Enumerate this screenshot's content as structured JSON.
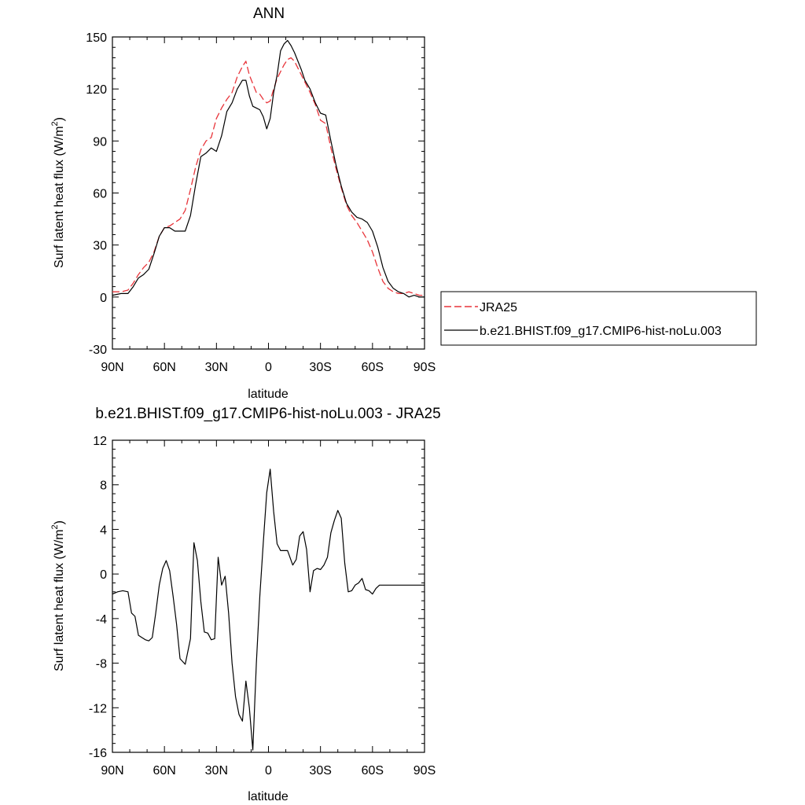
{
  "chart_data": [
    {
      "type": "line",
      "title": "ANN",
      "xlabel": "latitude",
      "ylabel": "Surf latent heat flux (W/m",
      "ylabel_sup": "2",
      "ylabel_close": ")",
      "xlim": [
        90,
        -90
      ],
      "ylim": [
        -30,
        150
      ],
      "xticks": [
        90,
        60,
        30,
        0,
        -30,
        -60,
        -90
      ],
      "xtick_labels": [
        "90N",
        "60N",
        "30N",
        "0",
        "30S",
        "60S",
        "90S"
      ],
      "yticks": [
        -30,
        0,
        30,
        60,
        90,
        120,
        150
      ],
      "ytick_labels": [
        "-30",
        "0",
        "30",
        "60",
        "90",
        "120",
        "150"
      ],
      "legend_position": "right",
      "series": [
        {
          "name": "JRA25",
          "color": "#e8343a",
          "dash": "dashed",
          "points": [
            [
              90,
              3
            ],
            [
              85,
              3
            ],
            [
              81,
              4
            ],
            [
              78,
              8
            ],
            [
              75,
              13
            ],
            [
              72,
              17
            ],
            [
              69,
              20
            ],
            [
              66,
              26
            ],
            [
              63,
              35
            ],
            [
              60,
              40
            ],
            [
              57,
              41
            ],
            [
              54,
              43
            ],
            [
              51,
              45
            ],
            [
              48,
              50
            ],
            [
              45,
              62
            ],
            [
              42,
              75
            ],
            [
              39,
              85
            ],
            [
              36,
              90
            ],
            [
              33,
              92
            ],
            [
              30,
              103
            ],
            [
              27,
              109
            ],
            [
              24,
              114
            ],
            [
              21,
              118
            ],
            [
              18,
              127
            ],
            [
              15,
              133
            ],
            [
              13,
              136
            ],
            [
              11,
              128
            ],
            [
              9,
              123
            ],
            [
              7,
              118
            ],
            [
              5,
              117
            ],
            [
              3,
              114
            ],
            [
              1,
              112
            ],
            [
              -1,
              113
            ],
            [
              -3,
              120
            ],
            [
              -5,
              126
            ],
            [
              -7,
              130
            ],
            [
              -9,
              134
            ],
            [
              -11,
              137
            ],
            [
              -13,
              138
            ],
            [
              -15,
              136
            ],
            [
              -17,
              132
            ],
            [
              -19,
              128
            ],
            [
              -21,
              124
            ],
            [
              -24,
              118
            ],
            [
              -27,
              111
            ],
            [
              -30,
              102
            ],
            [
              -33,
              100
            ],
            [
              -36,
              86
            ],
            [
              -39,
              74
            ],
            [
              -42,
              63
            ],
            [
              -45,
              53
            ],
            [
              -48,
              47
            ],
            [
              -51,
              43
            ],
            [
              -54,
              38
            ],
            [
              -57,
              33
            ],
            [
              -60,
              26
            ],
            [
              -63,
              17
            ],
            [
              -66,
              9
            ],
            [
              -69,
              5
            ],
            [
              -72,
              3
            ],
            [
              -75,
              2
            ],
            [
              -78,
              2
            ],
            [
              -81,
              3
            ],
            [
              -84,
              2
            ],
            [
              -87,
              1
            ],
            [
              -90,
              1
            ]
          ]
        },
        {
          "name": "b.e21.BHIST.f09_g17.CMIP6-hist-noLu.003",
          "color": "#000000",
          "dash": "solid",
          "points": [
            [
              90,
              1
            ],
            [
              85,
              2
            ],
            [
              81,
              2
            ],
            [
              78,
              6
            ],
            [
              75,
              11
            ],
            [
              72,
              13
            ],
            [
              69,
              16
            ],
            [
              66,
              25
            ],
            [
              63,
              35
            ],
            [
              60,
              40
            ],
            [
              57,
              40
            ],
            [
              54,
              38
            ],
            [
              51,
              38
            ],
            [
              48,
              38
            ],
            [
              45,
              47
            ],
            [
              42,
              65
            ],
            [
              39,
              81
            ],
            [
              36,
              83
            ],
            [
              33,
              86
            ],
            [
              30,
              84
            ],
            [
              27,
              93
            ],
            [
              24,
              107
            ],
            [
              21,
              112
            ],
            [
              18,
              120
            ],
            [
              15,
              125
            ],
            [
              13,
              125
            ],
            [
              11,
              116
            ],
            [
              9,
              110
            ],
            [
              7,
              109
            ],
            [
              5,
              108
            ],
            [
              3,
              104
            ],
            [
              1,
              97
            ],
            [
              -1,
              103
            ],
            [
              -3,
              118
            ],
            [
              -5,
              128
            ],
            [
              -7,
              142
            ],
            [
              -9,
              146
            ],
            [
              -11,
              148
            ],
            [
              -13,
              145
            ],
            [
              -15,
              141
            ],
            [
              -17,
              136
            ],
            [
              -19,
              131
            ],
            [
              -21,
              125
            ],
            [
              -24,
              120
            ],
            [
              -27,
              112
            ],
            [
              -30,
              106
            ],
            [
              -33,
              105
            ],
            [
              -36,
              90
            ],
            [
              -39,
              76
            ],
            [
              -42,
              64
            ],
            [
              -45,
              54
            ],
            [
              -48,
              49
            ],
            [
              -51,
              46
            ],
            [
              -54,
              45
            ],
            [
              -57,
              43
            ],
            [
              -60,
              38
            ],
            [
              -63,
              29
            ],
            [
              -66,
              17
            ],
            [
              -69,
              9
            ],
            [
              -72,
              5
            ],
            [
              -75,
              3
            ],
            [
              -78,
              2
            ],
            [
              -81,
              0
            ],
            [
              -84,
              1
            ],
            [
              -87,
              0
            ],
            [
              -90,
              0
            ]
          ]
        }
      ]
    },
    {
      "type": "line",
      "title": "b.e21.BHIST.f09_g17.CMIP6-hist-noLu.003 - JRA25",
      "xlabel": "latitude",
      "ylabel": "Surf latent heat flux (W/m",
      "ylabel_sup": "2",
      "ylabel_close": ")",
      "xlim": [
        90,
        -90
      ],
      "ylim": [
        -16,
        12
      ],
      "xticks": [
        90,
        60,
        30,
        0,
        -30,
        -60,
        -90
      ],
      "xtick_labels": [
        "90N",
        "60N",
        "30N",
        "0",
        "30S",
        "60S",
        "90S"
      ],
      "yticks": [
        -16,
        -12,
        -8,
        -4,
        0,
        4,
        8,
        12
      ],
      "ytick_labels": [
        "-16",
        "-12",
        "-8",
        "-4",
        "0",
        "4",
        "8",
        "12"
      ],
      "series": [
        {
          "color": "#000000",
          "dash": "solid",
          "points": [
            [
              90,
              -1.8
            ],
            [
              87,
              -1.6
            ],
            [
              84,
              -1.5
            ],
            [
              81,
              -1.6
            ],
            [
              79,
              -3.5
            ],
            [
              77,
              -3.8
            ],
            [
              75,
              -5.5
            ],
            [
              73,
              -5.7
            ],
            [
              71,
              -5.9
            ],
            [
              69,
              -6.0
            ],
            [
              67,
              -5.7
            ],
            [
              65,
              -3.5
            ],
            [
              63,
              -1.0
            ],
            [
              61,
              0.5
            ],
            [
              59,
              1.2
            ],
            [
              57,
              0.3
            ],
            [
              55,
              -2.0
            ],
            [
              53,
              -4.5
            ],
            [
              51,
              -7.6
            ],
            [
              48,
              -8.1
            ],
            [
              45,
              -5.8
            ],
            [
              43,
              2.8
            ],
            [
              41,
              1.2
            ],
            [
              39,
              -2.5
            ],
            [
              37,
              -5.2
            ],
            [
              35,
              -5.3
            ],
            [
              33,
              -5.9
            ],
            [
              31,
              -5.8
            ],
            [
              29,
              1.5
            ],
            [
              27,
              -1.0
            ],
            [
              25,
              -0.2
            ],
            [
              23,
              -3.5
            ],
            [
              21,
              -8.0
            ],
            [
              19,
              -11.0
            ],
            [
              17,
              -12.6
            ],
            [
              15,
              -13.2
            ],
            [
              13,
              -9.6
            ],
            [
              11,
              -12.0
            ],
            [
              9,
              -15.8
            ],
            [
              7,
              -8.0
            ],
            [
              5,
              -2.0
            ],
            [
              3,
              2.8
            ],
            [
              1,
              7.3
            ],
            [
              -1,
              9.4
            ],
            [
              -3,
              5.6
            ],
            [
              -5,
              2.7
            ],
            [
              -7,
              2.1
            ],
            [
              -9,
              2.1
            ],
            [
              -11,
              2.1
            ],
            [
              -14,
              0.8
            ],
            [
              -16,
              1.3
            ],
            [
              -18,
              3.4
            ],
            [
              -20,
              3.8
            ],
            [
              -22,
              2.2
            ],
            [
              -24,
              -1.6
            ],
            [
              -26,
              0.3
            ],
            [
              -28,
              0.5
            ],
            [
              -30,
              0.4
            ],
            [
              -32,
              0.8
            ],
            [
              -34,
              1.5
            ],
            [
              -36,
              3.7
            ],
            [
              -38,
              4.8
            ],
            [
              -40,
              5.7
            ],
            [
              -42,
              5.0
            ],
            [
              -44,
              1.0
            ],
            [
              -46,
              -1.6
            ],
            [
              -48,
              -1.5
            ],
            [
              -50,
              -1.0
            ],
            [
              -52,
              -0.8
            ],
            [
              -54,
              -0.4
            ],
            [
              -56,
              -1.4
            ],
            [
              -58,
              -1.5
            ],
            [
              -60,
              -1.8
            ],
            [
              -62,
              -1.3
            ],
            [
              -64,
              -1.0
            ],
            [
              -90,
              -1.0
            ]
          ]
        }
      ]
    }
  ]
}
